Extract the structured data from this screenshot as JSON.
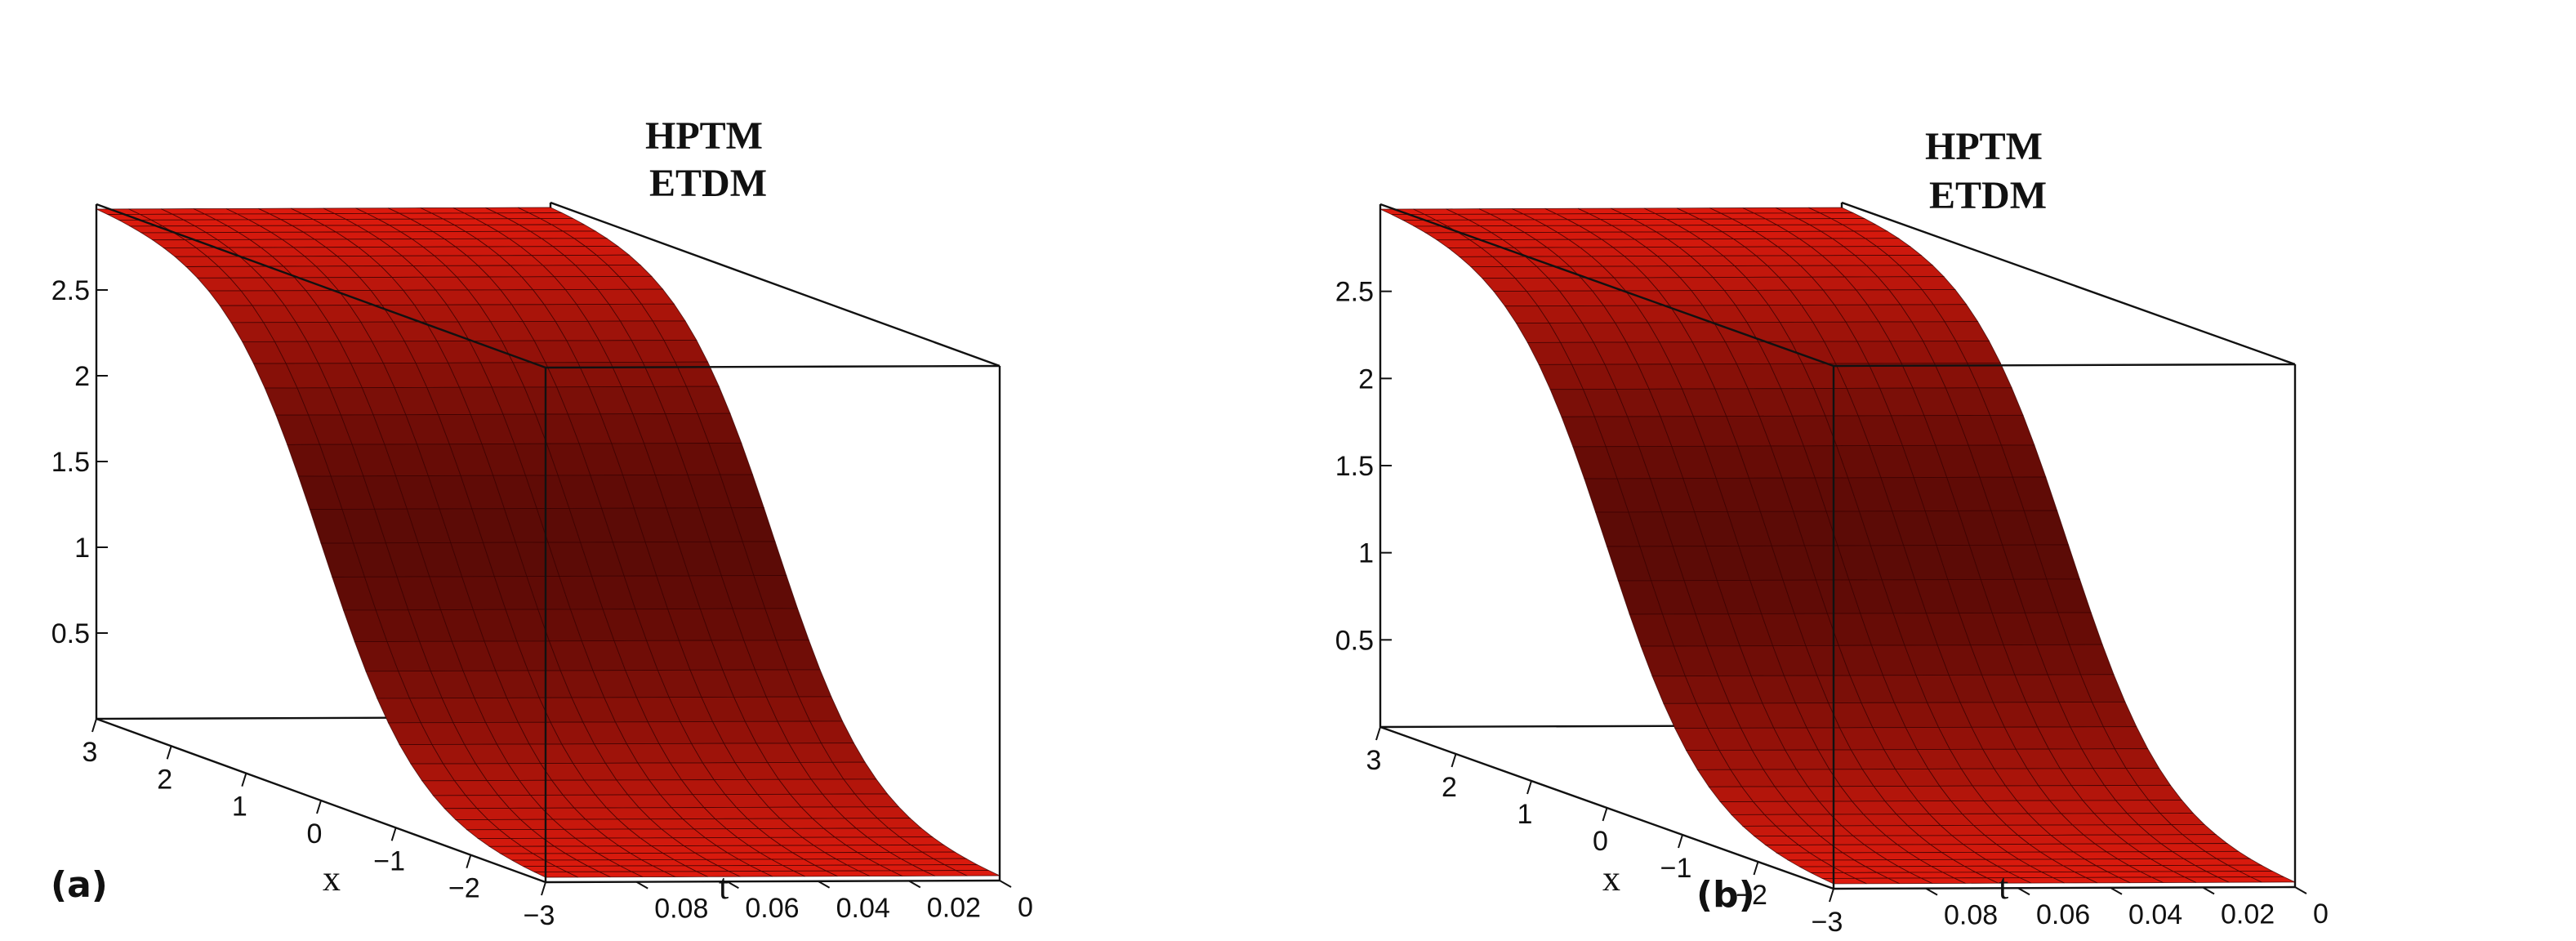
{
  "chart_data": [
    {
      "panel_label": "(a)",
      "type": "surface",
      "legend": [
        "HPTM",
        "ETDM"
      ],
      "surface_color": "#e31b0e",
      "x": {
        "label": "x",
        "ticks": [
          "3",
          "2",
          "1",
          "0",
          "−1",
          "−2",
          "−3"
        ],
        "range": [
          -3,
          3
        ]
      },
      "t": {
        "label": "t",
        "ticks": [
          "0",
          "0.02",
          "0.04",
          "0.06",
          "0.08"
        ],
        "range": [
          0,
          0.1
        ]
      },
      "z": {
        "label": "",
        "ticks": [
          "0.5",
          "1",
          "1.5",
          "2",
          "2.5"
        ],
        "range": [
          0,
          3
        ]
      },
      "surface": {
        "high_value": 3.0,
        "low_value": 0.0,
        "center_x": 0.0,
        "sharpness": 1.55
      }
    },
    {
      "panel_label": "(b)",
      "type": "surface",
      "legend": [
        "HPTM",
        "ETDM"
      ],
      "surface_color": "#e31b0e",
      "x": {
        "label": "x",
        "ticks": [
          "3",
          "2",
          "1",
          "0",
          "−1",
          "−2",
          "−3"
        ],
        "range": [
          -3,
          3
        ]
      },
      "t": {
        "label": "t",
        "ticks": [
          "0",
          "0.02",
          "0.04",
          "0.06",
          "0.08"
        ],
        "range": [
          0,
          0.1
        ]
      },
      "z": {
        "label": "",
        "ticks": [
          "0.5",
          "1",
          "1.5",
          "2",
          "2.5"
        ],
        "range": [
          0,
          3
        ]
      },
      "surface": {
        "high_value": 3.0,
        "low_value": 0.0,
        "center_x": 0.0,
        "sharpness": 1.55
      }
    }
  ]
}
